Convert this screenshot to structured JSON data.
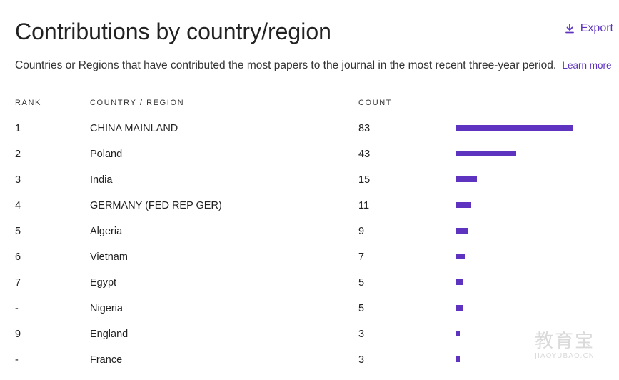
{
  "header": {
    "title": "Contributions by country/region",
    "export_label": "Export",
    "subtitle": "Countries or Regions that have contributed the most papers to the journal in the most recent three-year period.",
    "learn_more": "Learn more"
  },
  "table": {
    "columns": {
      "rank": "RANK",
      "country": "COUNTRY / REGION",
      "count": "COUNT"
    },
    "max_count": 83,
    "bar_color": "#5e33bf",
    "rows": [
      {
        "rank": "1",
        "country": "CHINA MAINLAND",
        "count": "83"
      },
      {
        "rank": "2",
        "country": "Poland",
        "count": "43"
      },
      {
        "rank": "3",
        "country": "India",
        "count": "15"
      },
      {
        "rank": "4",
        "country": "GERMANY (FED REP GER)",
        "count": "11"
      },
      {
        "rank": "5",
        "country": "Algeria",
        "count": "9"
      },
      {
        "rank": "6",
        "country": "Vietnam",
        "count": "7"
      },
      {
        "rank": "7",
        "country": "Egypt",
        "count": "5"
      },
      {
        "rank": "-",
        "country": "Nigeria",
        "count": "5"
      },
      {
        "rank": "9",
        "country": "England",
        "count": "3"
      },
      {
        "rank": "-",
        "country": "France",
        "count": "3"
      }
    ]
  },
  "watermark": {
    "text_cn": "教育宝",
    "text_en": "JIAOYUBAO.CN"
  },
  "icons": {
    "export": "download-icon"
  }
}
